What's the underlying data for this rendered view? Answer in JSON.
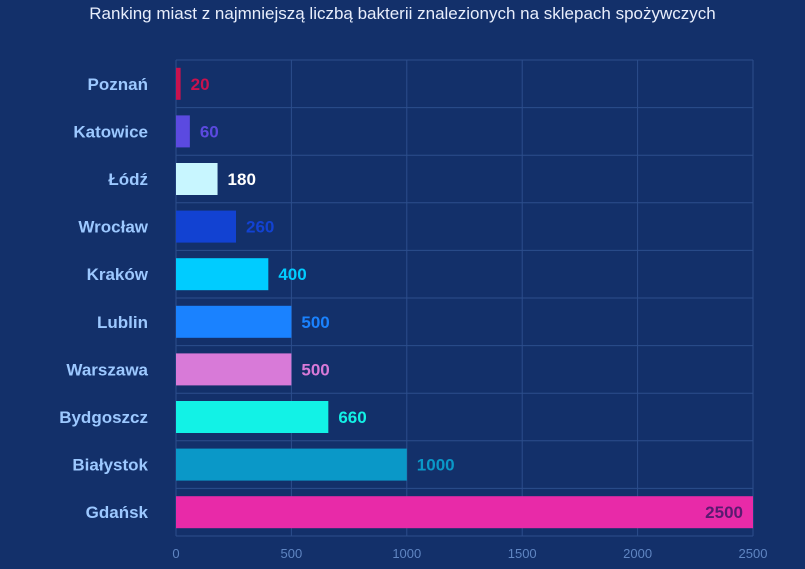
{
  "chart_data": {
    "type": "bar",
    "orientation": "horizontal",
    "title": "Ranking miast z najmniejszą liczbą bakterii znalezionych na sklepach spożywczych",
    "categories": [
      "Poznań",
      "Katowice",
      "Łódź",
      "Wrocław",
      "Kraków",
      "Lublin",
      "Warszawa",
      "Bydgoszcz",
      "Białystok",
      "Gdańsk"
    ],
    "values": [
      20,
      60,
      180,
      260,
      400,
      500,
      500,
      660,
      1000,
      2500
    ],
    "colors": [
      "#c8124e",
      "#5b4ae0",
      "#c8f6ff",
      "#1242d2",
      "#00ccff",
      "#1a82ff",
      "#d87ad8",
      "#12f2e6",
      "#0a98c8",
      "#e82aa8"
    ],
    "label_colors": [
      "#c8124e",
      "#5b4ae0",
      "#ffffff",
      "#1242d2",
      "#00ccff",
      "#1a82ff",
      "#d87ad8",
      "#12f2e6",
      "#0a98c8",
      "#5a1a70"
    ],
    "xlim": [
      0,
      2500
    ],
    "xticks": [
      0,
      500,
      1000,
      1500,
      2000,
      2500
    ],
    "grid": true,
    "xlabel": "",
    "ylabel": "",
    "background": "#13306a"
  }
}
